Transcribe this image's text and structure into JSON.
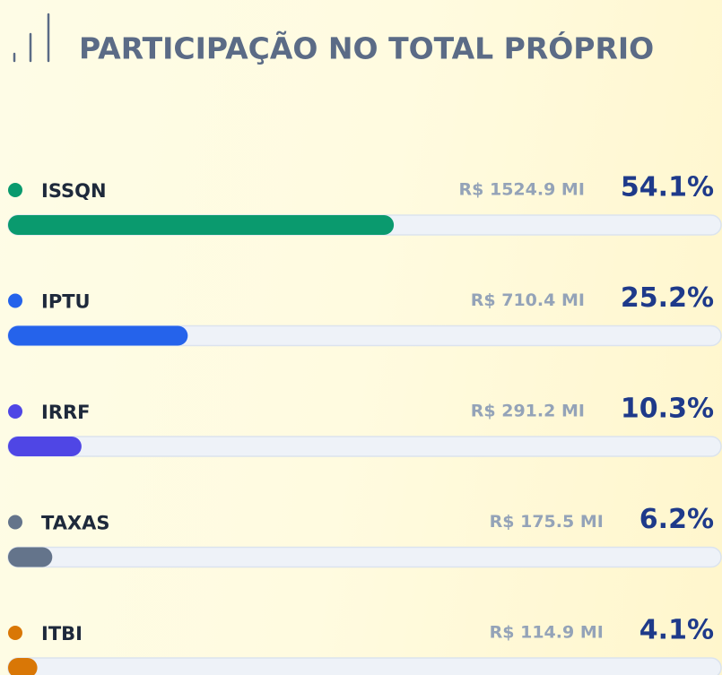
{
  "chart_data": {
    "type": "bar",
    "orientation": "horizontal",
    "title": "PARTICIPAÇÃO NO TOTAL PRÓPRIO",
    "categories": [
      "ISSQN",
      "IPTU",
      "IRRF",
      "TAXAS",
      "ITBI"
    ],
    "values": [
      54.1,
      25.2,
      10.3,
      6.2,
      4.1
    ],
    "value_labels": [
      "54.1%",
      "25.2%",
      "10.3%",
      "6.2%",
      "4.1%"
    ],
    "amount_labels": [
      "R$ 1524.9 MI",
      "R$ 710.4 MI",
      "R$ 291.2 MI",
      "R$ 175.5 MI",
      "R$ 114.9 MI"
    ],
    "colors": [
      "#0a9a6e",
      "#2563eb",
      "#4f46e5",
      "#64748b",
      "#d97706"
    ],
    "xlim": [
      0,
      100
    ]
  }
}
